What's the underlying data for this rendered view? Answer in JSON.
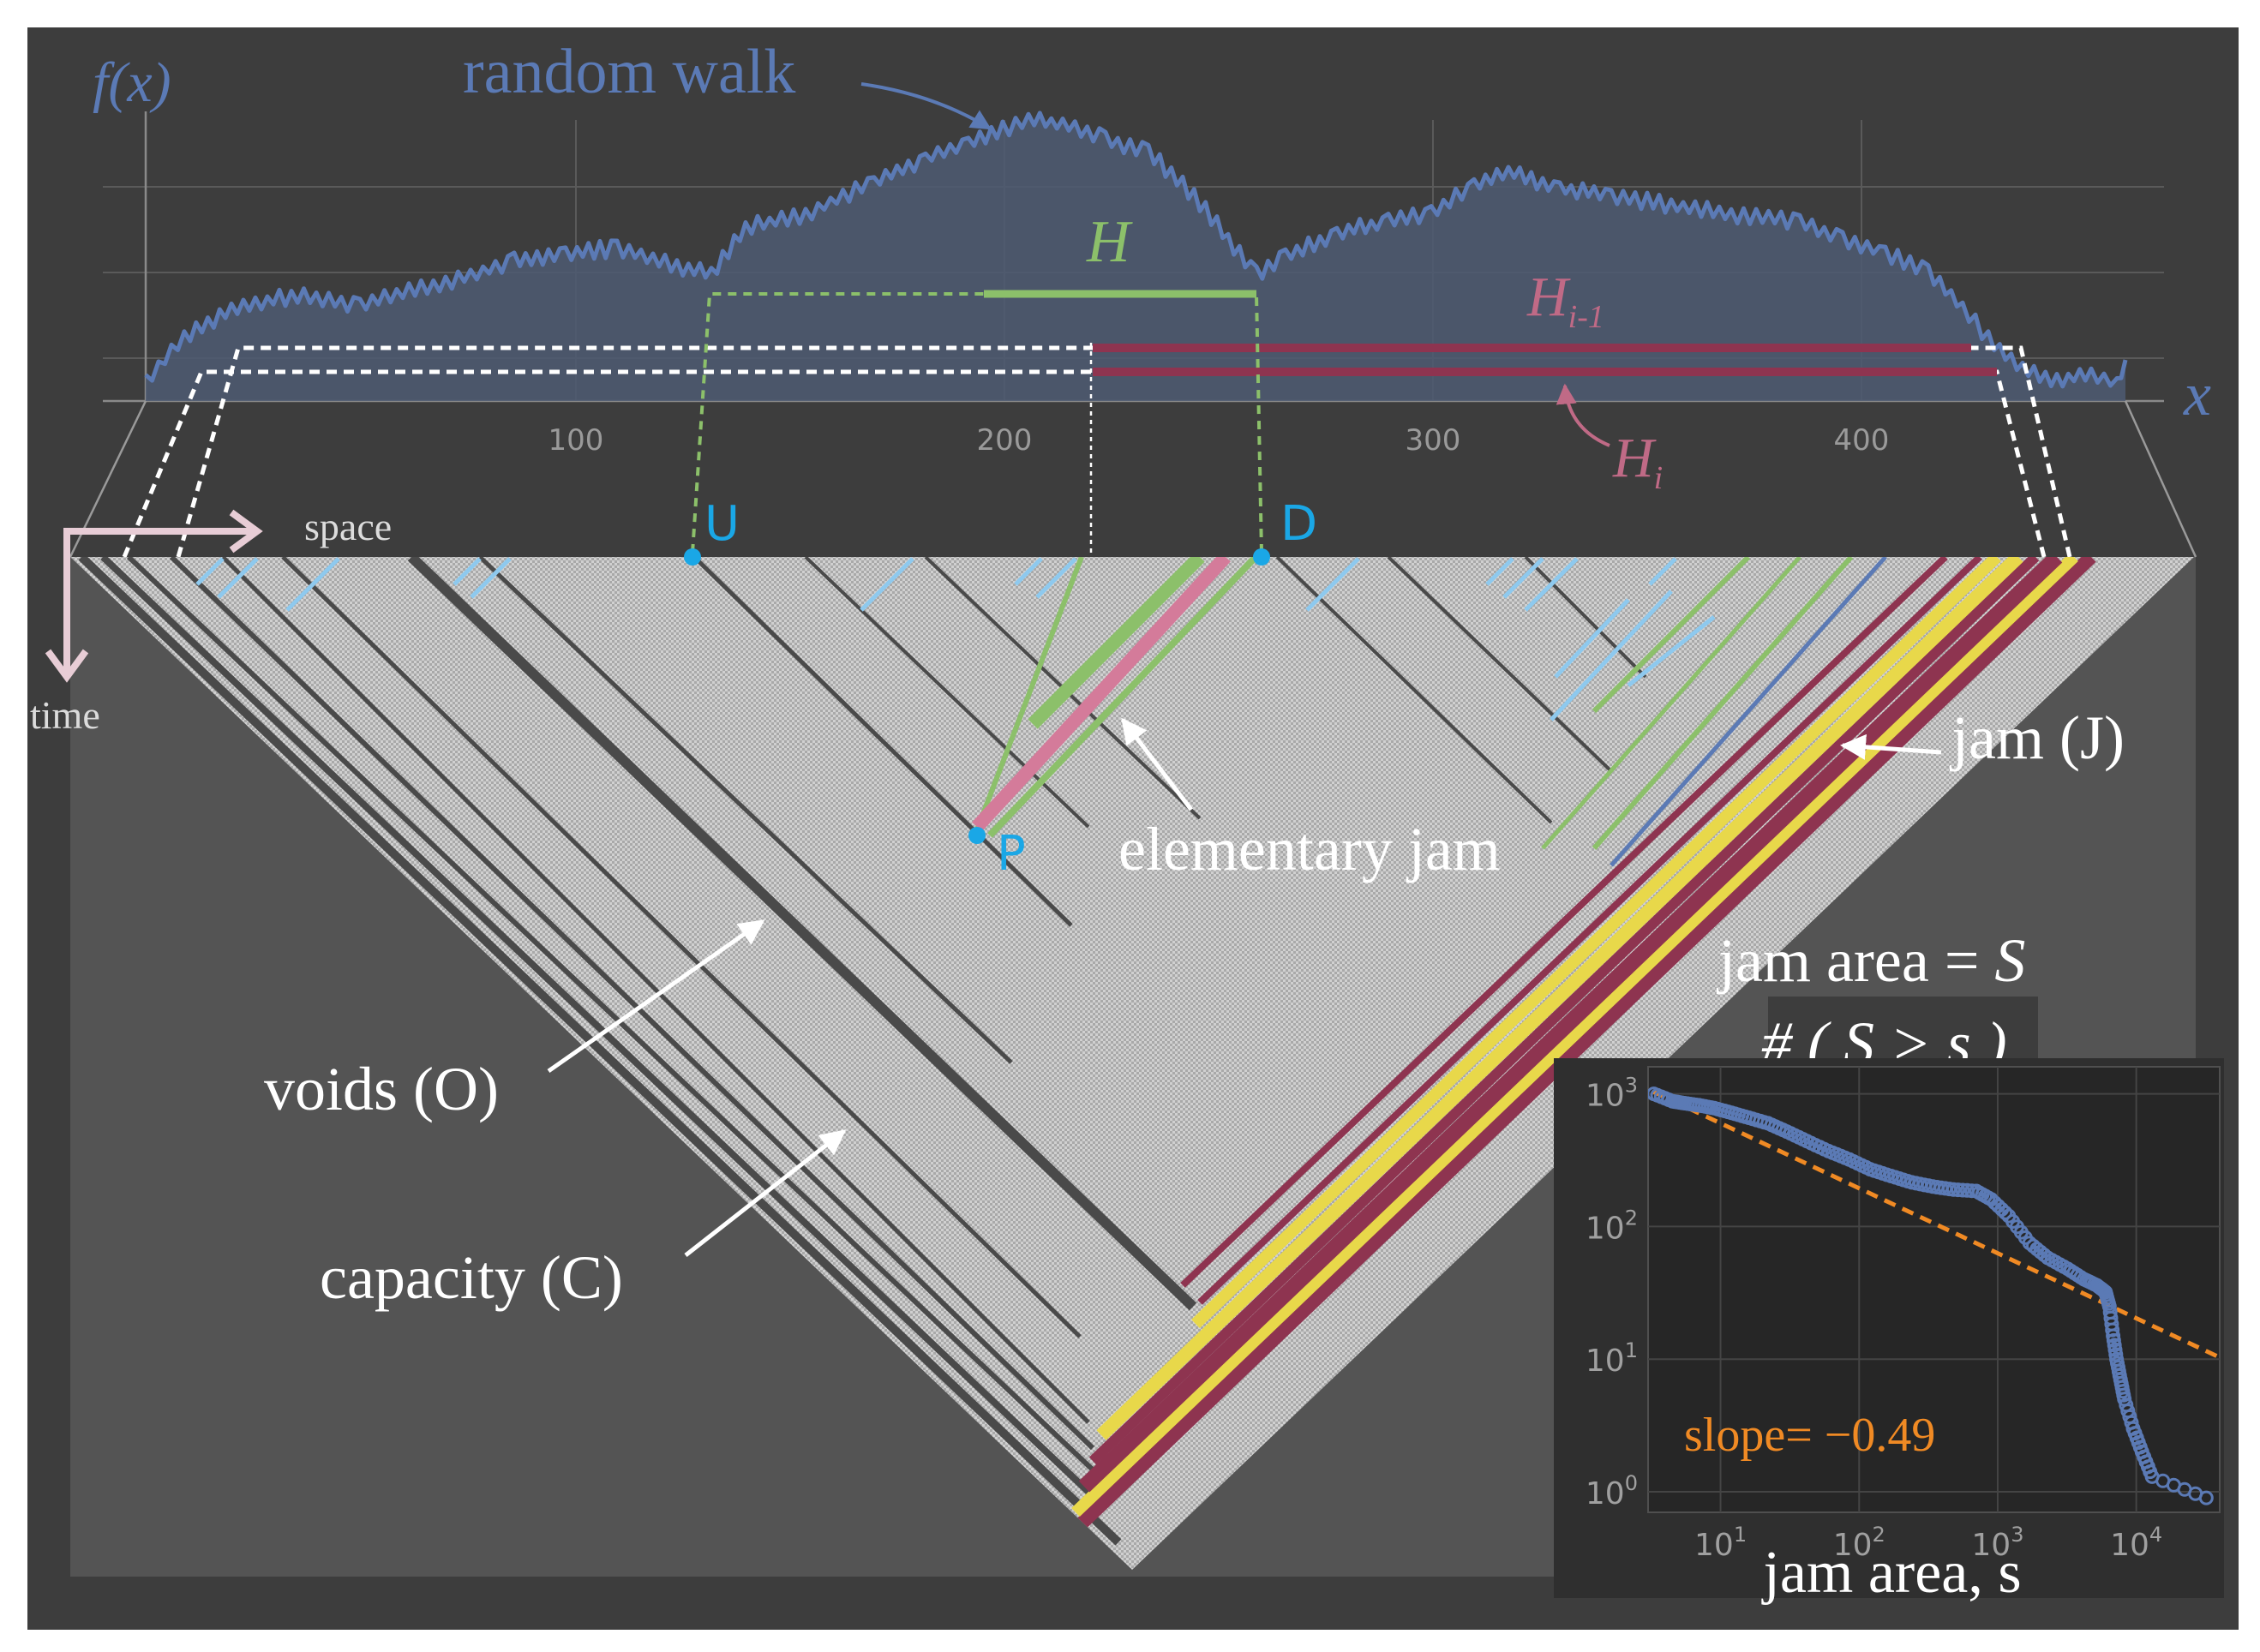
{
  "labels": {
    "fx": "f(x)",
    "random_walk": "random walk",
    "x_axis": "x",
    "H": "H",
    "H_im1_base": "H",
    "H_im1_sub": "i-1",
    "H_i_base": "H",
    "H_i_sub": "i",
    "space": "space",
    "time": "time",
    "U": "U",
    "D": "D",
    "P": "P",
    "jam_J": "jam (J)",
    "elementary_jam": "elementary jam",
    "voids": "voids (O)",
    "capacity": "capacity (C)",
    "jam_area_eq": "jam area = ",
    "jam_area_S": "S",
    "count_label": "# ( S > s )"
  },
  "walk_axis": {
    "ticks": [
      "100",
      "200",
      "300",
      "400"
    ]
  },
  "inset": {
    "y_ticks": [
      {
        "base": "10",
        "exp": "3"
      },
      {
        "base": "10",
        "exp": "2"
      },
      {
        "base": "10",
        "exp": "1"
      },
      {
        "base": "10",
        "exp": "0"
      }
    ],
    "x_ticks": [
      {
        "base": "10",
        "exp": "1"
      },
      {
        "base": "10",
        "exp": "2"
      },
      {
        "base": "10",
        "exp": "3"
      },
      {
        "base": "10",
        "exp": "4"
      }
    ],
    "slope_text": "slope= −0.49",
    "xlabel": "jam area, s"
  },
  "colors": {
    "frame": "#3d3d3d",
    "walk": "#5b7ab5",
    "green": "#8cc06a",
    "pink": "#d47b9a",
    "maroon": "#8e3450",
    "yellow": "#e8d84a",
    "cyan": "#1aa7e6",
    "orange": "#f08a24",
    "light_blue": "#8ec9ee",
    "arrow_pink": "#e8cdd6"
  },
  "chart_data": {
    "type": "scatter",
    "xscale": "log",
    "yscale": "log",
    "xlabel": "jam area, s",
    "ylabel": "# ( S > s )",
    "xlim": [
      3,
      40000
    ],
    "ylim": [
      0.7,
      1600
    ],
    "fit_slope": -0.49,
    "series": [
      {
        "x": [
          3.3,
          4.5,
          5.5,
          7,
          9,
          12,
          16,
          22,
          30,
          42,
          60,
          85,
          120,
          170,
          240,
          340,
          480,
          700,
          900,
          1200,
          1700,
          2300,
          3200,
          4200,
          5200,
          6000,
          6400,
          6800,
          7200,
          7700,
          8200,
          9500,
          11000,
          13000,
          32000
        ],
        "y": [
          1000,
          880,
          850,
          820,
          780,
          720,
          660,
          600,
          520,
          440,
          370,
          320,
          270,
          240,
          215,
          200,
          190,
          185,
          160,
          120,
          75,
          58,
          48,
          40,
          36,
          32,
          25,
          15,
          10,
          7,
          5,
          3,
          2,
          1.3,
          0.9
        ]
      }
    ]
  }
}
